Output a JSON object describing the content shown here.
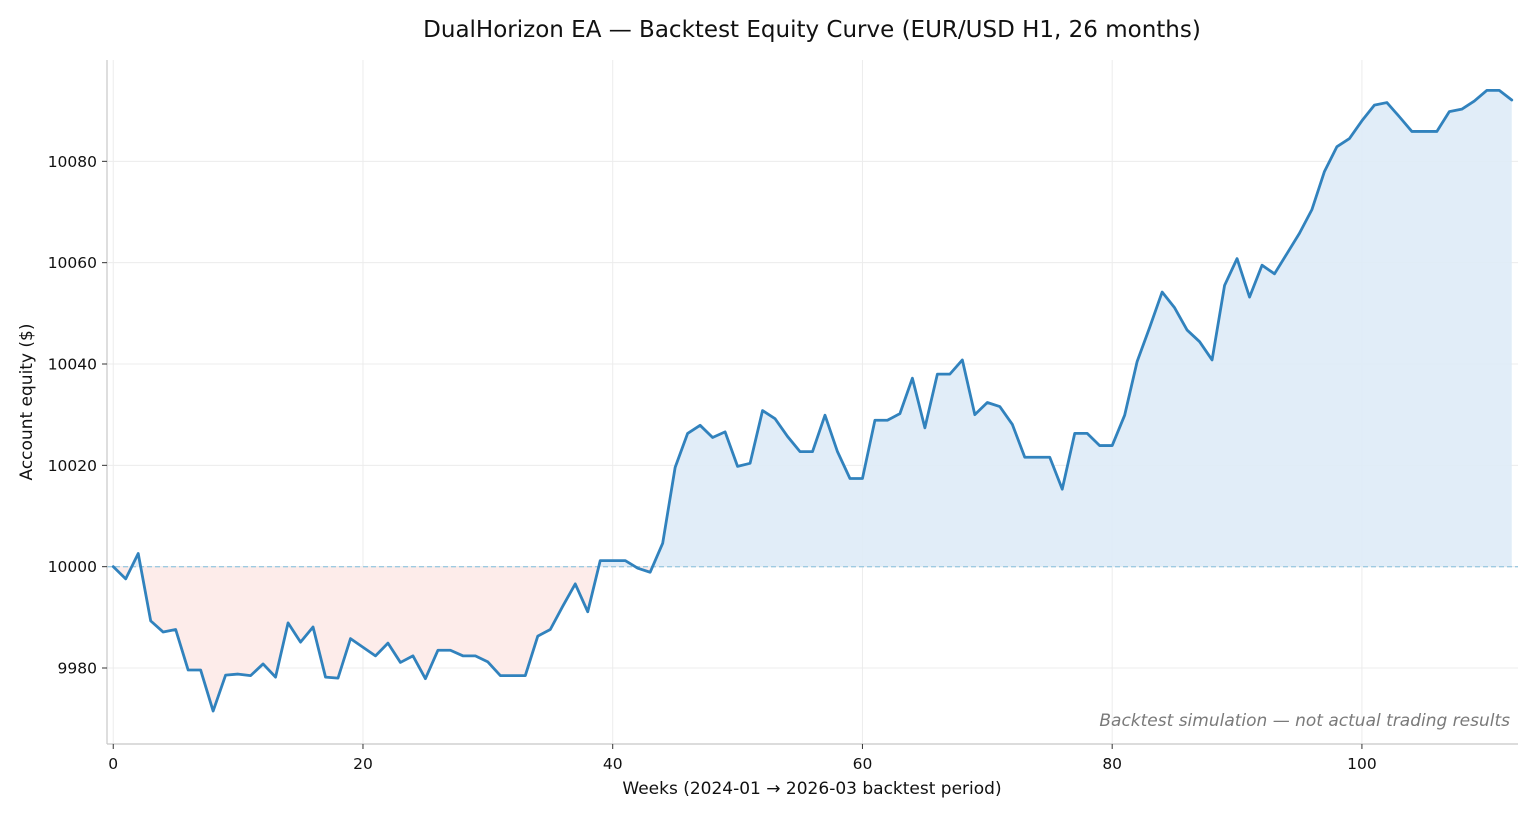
{
  "chart_data": {
    "type": "line",
    "title": "DualHorizon EA — Backtest Equity Curve (EUR/USD H1, 26 months)",
    "xlabel": "Weeks (2024-01 → 2026-03 backtest period)",
    "ylabel": "Account equity ($)",
    "xlim": [
      -0.5,
      112.5
    ],
    "ylim": [
      9965,
      10100
    ],
    "xticks": [
      0,
      20,
      40,
      60,
      80,
      100
    ],
    "yticks": [
      9980,
      10000,
      10020,
      10040,
      10060,
      10080
    ],
    "grid": true,
    "baseline": 10000,
    "annotation": "Backtest simulation — not actual trading results",
    "colors": {
      "line": "#3182bd",
      "fill_above": "#deebf7",
      "fill_below": "#fdecea",
      "baseline": "#9ecae1"
    },
    "series": [
      {
        "x": [
          0,
          1,
          2,
          3,
          4,
          5,
          6,
          7,
          8,
          9,
          10,
          11,
          12,
          13,
          14,
          15,
          16,
          17,
          18,
          19,
          20,
          21,
          22,
          23,
          24,
          25,
          26,
          27,
          28,
          29,
          30,
          31,
          32,
          33,
          34,
          35,
          36,
          37,
          38,
          39,
          40,
          41,
          42,
          43,
          44,
          45,
          46,
          47,
          48,
          49,
          50,
          51,
          52,
          53,
          54,
          55,
          56,
          57,
          58,
          59,
          60,
          61,
          62,
          63,
          64,
          65,
          66,
          67,
          68,
          69,
          70,
          71,
          72,
          73,
          74,
          75,
          76,
          77,
          78,
          79,
          80,
          81,
          82,
          83,
          84,
          85,
          86,
          87,
          88,
          89,
          90,
          91,
          92,
          93,
          94,
          95,
          96,
          97,
          98,
          99,
          100,
          101,
          102,
          103,
          104,
          105,
          106,
          107,
          108,
          109,
          110,
          111,
          112
        ],
        "y": [
          10000,
          9997.6,
          10002.6,
          9989.3,
          9987.1,
          9987.6,
          9979.6,
          9979.6,
          9971.5,
          9978.6,
          9978.8,
          9978.5,
          9980.8,
          9978.2,
          9988.9,
          9985.1,
          9988.1,
          9978.2,
          9978.0,
          9985.8,
          9984.1,
          9982.4,
          9984.9,
          9981.1,
          9982.4,
          9977.9,
          9983.5,
          9983.5,
          9982.4,
          9982.4,
          9981.2,
          9978.5,
          9978.5,
          9978.5,
          9986.3,
          9987.6,
          9992.2,
          9996.6,
          9991.1,
          10001.2,
          10001.2,
          10001.2,
          9999.7,
          9998.9,
          10004.6,
          10019.6,
          10026.3,
          10027.9,
          10025.5,
          10026.6,
          10019.8,
          10020.4,
          10030.8,
          10029.2,
          10025.7,
          10022.7,
          10022.7,
          10029.9,
          10022.7,
          10017.4,
          10017.4,
          10028.9,
          10028.9,
          10030.2,
          10037.2,
          10027.4,
          10038.0,
          10038.0,
          10040.8,
          10030.0,
          10032.4,
          10031.6,
          10028.1,
          10021.6,
          10021.6,
          10021.6,
          10015.3,
          10026.3,
          10026.3,
          10023.9,
          10023.9,
          10029.9,
          10040.5,
          10047.2,
          10054.2,
          10051.1,
          10046.7,
          10044.4,
          10040.8,
          10055.5,
          10060.8,
          10053.2,
          10059.5,
          10057.8,
          10061.8,
          10065.8,
          10070.5,
          10078.0,
          10082.9,
          10084.5,
          10088.0,
          10091.1,
          10091.6,
          10088.8,
          10085.9,
          10085.9,
          10085.9,
          10089.8,
          10090.3,
          10091.9,
          10094.0,
          10094.0,
          10092.1
        ]
      }
    ]
  }
}
